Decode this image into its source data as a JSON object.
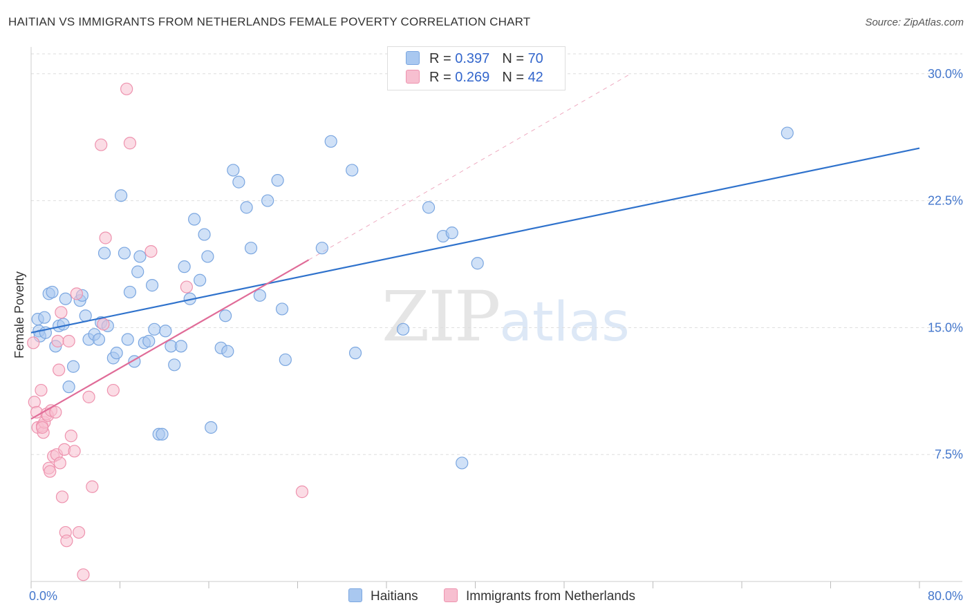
{
  "title": "HAITIAN VS IMMIGRANTS FROM NETHERLANDS FEMALE POVERTY CORRELATION CHART",
  "source": "Source: ZipAtlas.com",
  "watermark": {
    "zip": "ZIP",
    "atlas": "atlas"
  },
  "legend_top": [
    {
      "r_label": "R = ",
      "r_value": "0.397",
      "n_label": "N = ",
      "n_value": "70"
    },
    {
      "r_label": "R = ",
      "r_value": "0.269",
      "n_label": "N = ",
      "n_value": "42"
    }
  ],
  "legend_bottom": [
    "Haitians",
    "Immigrants from Netherlands"
  ],
  "colors": {
    "haitians_fill": "#a9c8f0",
    "haitians_stroke": "#7aa6e0",
    "haitians_line": "#2f72cc",
    "netherlands_fill": "#f7bfd0",
    "netherlands_stroke": "#ee92ae",
    "netherlands_line": "#e06c98",
    "grid": "#dddddd",
    "tick_text": "#4477cc"
  },
  "chart_data": {
    "type": "scatter",
    "title": "HAITIAN VS IMMIGRANTS FROM NETHERLANDS FEMALE POVERTY CORRELATION CHART",
    "xlabel": "",
    "ylabel": "Female Poverty",
    "xlim": [
      0,
      80
    ],
    "ylim": [
      0,
      31.5
    ],
    "x_tick_labels": [
      "0.0%",
      "80.0%"
    ],
    "y_ticks": [
      7.5,
      15.0,
      22.5,
      30.0
    ],
    "y_tick_labels": [
      "7.5%",
      "15.0%",
      "22.5%",
      "30.0%"
    ],
    "grid": true,
    "legend_position": "top-center",
    "series": [
      {
        "name": "Haitians",
        "r": 0.397,
        "n": 70,
        "trend": {
          "x0": 0,
          "y0": 14.7,
          "x1": 80,
          "y1": 25.6
        },
        "points": [
          [
            0.6,
            15.5
          ],
          [
            0.7,
            14.8
          ],
          [
            0.8,
            14.5
          ],
          [
            1.2,
            15.6
          ],
          [
            1.3,
            14.7
          ],
          [
            1.6,
            17.0
          ],
          [
            1.9,
            17.1
          ],
          [
            2.2,
            13.9
          ],
          [
            2.5,
            15.1
          ],
          [
            2.9,
            15.2
          ],
          [
            3.1,
            16.7
          ],
          [
            3.4,
            11.5
          ],
          [
            3.8,
            12.7
          ],
          [
            4.4,
            16.6
          ],
          [
            4.6,
            16.9
          ],
          [
            4.9,
            15.7
          ],
          [
            5.2,
            14.3
          ],
          [
            5.7,
            14.6
          ],
          [
            6.1,
            14.3
          ],
          [
            6.3,
            15.3
          ],
          [
            6.6,
            19.4
          ],
          [
            6.9,
            15.1
          ],
          [
            7.4,
            13.2
          ],
          [
            7.7,
            13.5
          ],
          [
            8.1,
            22.8
          ],
          [
            8.4,
            19.4
          ],
          [
            8.7,
            14.3
          ],
          [
            8.9,
            17.1
          ],
          [
            9.3,
            13.0
          ],
          [
            9.6,
            18.3
          ],
          [
            9.8,
            19.2
          ],
          [
            10.2,
            14.1
          ],
          [
            10.6,
            14.2
          ],
          [
            10.9,
            17.5
          ],
          [
            11.1,
            14.9
          ],
          [
            11.5,
            8.7
          ],
          [
            11.8,
            8.7
          ],
          [
            12.1,
            14.8
          ],
          [
            12.6,
            13.9
          ],
          [
            12.9,
            12.8
          ],
          [
            13.5,
            13.9
          ],
          [
            13.8,
            18.6
          ],
          [
            14.3,
            16.7
          ],
          [
            14.7,
            21.4
          ],
          [
            15.2,
            17.8
          ],
          [
            15.6,
            20.5
          ],
          [
            15.9,
            19.2
          ],
          [
            16.2,
            9.1
          ],
          [
            17.1,
            13.8
          ],
          [
            17.5,
            15.7
          ],
          [
            17.7,
            13.6
          ],
          [
            18.2,
            24.3
          ],
          [
            18.7,
            23.6
          ],
          [
            19.4,
            22.1
          ],
          [
            19.8,
            19.7
          ],
          [
            20.6,
            16.9
          ],
          [
            21.3,
            22.5
          ],
          [
            22.2,
            23.7
          ],
          [
            22.6,
            16.1
          ],
          [
            22.9,
            13.1
          ],
          [
            26.2,
            19.7
          ],
          [
            27.0,
            26.0
          ],
          [
            28.9,
            24.3
          ],
          [
            29.2,
            13.5
          ],
          [
            33.5,
            14.9
          ],
          [
            35.8,
            22.1
          ],
          [
            37.1,
            20.4
          ],
          [
            37.9,
            20.6
          ],
          [
            38.8,
            7.0
          ],
          [
            40.2,
            18.8
          ],
          [
            68.1,
            26.5
          ]
        ]
      },
      {
        "name": "Immigrants from Netherlands",
        "r": 0.269,
        "n": 42,
        "trend": {
          "x0": 0,
          "y0": 9.6,
          "x1": 25,
          "y1": 19.0
        },
        "trend_extension": {
          "x0": 25,
          "y0": 19.0,
          "x1": 54,
          "y1": 30.0
        },
        "points": [
          [
            0.2,
            14.1
          ],
          [
            0.3,
            10.6
          ],
          [
            0.5,
            10.0
          ],
          [
            0.6,
            9.1
          ],
          [
            0.9,
            11.3
          ],
          [
            1.0,
            9.2
          ],
          [
            1.1,
            8.8
          ],
          [
            1.2,
            9.4
          ],
          [
            1.4,
            9.9
          ],
          [
            1.5,
            9.8
          ],
          [
            1.6,
            6.7
          ],
          [
            1.7,
            6.5
          ],
          [
            1.8,
            10.1
          ],
          [
            2.0,
            7.4
          ],
          [
            2.2,
            10.0
          ],
          [
            2.3,
            7.5
          ],
          [
            2.4,
            14.2
          ],
          [
            2.5,
            12.5
          ],
          [
            2.6,
            7.0
          ],
          [
            2.7,
            15.9
          ],
          [
            2.8,
            5.0
          ],
          [
            3.0,
            7.8
          ],
          [
            3.1,
            2.9
          ],
          [
            3.2,
            2.4
          ],
          [
            3.4,
            14.2
          ],
          [
            3.6,
            8.6
          ],
          [
            3.9,
            7.7
          ],
          [
            4.1,
            17.0
          ],
          [
            4.3,
            2.9
          ],
          [
            4.7,
            0.4
          ],
          [
            5.2,
            10.9
          ],
          [
            5.5,
            5.6
          ],
          [
            6.3,
            25.8
          ],
          [
            6.7,
            20.3
          ],
          [
            7.4,
            11.3
          ],
          [
            8.6,
            29.1
          ],
          [
            8.9,
            25.9
          ],
          [
            10.8,
            19.5
          ],
          [
            14.0,
            17.4
          ],
          [
            6.5,
            15.2
          ],
          [
            24.4,
            5.3
          ],
          [
            1.0,
            9.1
          ]
        ]
      }
    ]
  }
}
